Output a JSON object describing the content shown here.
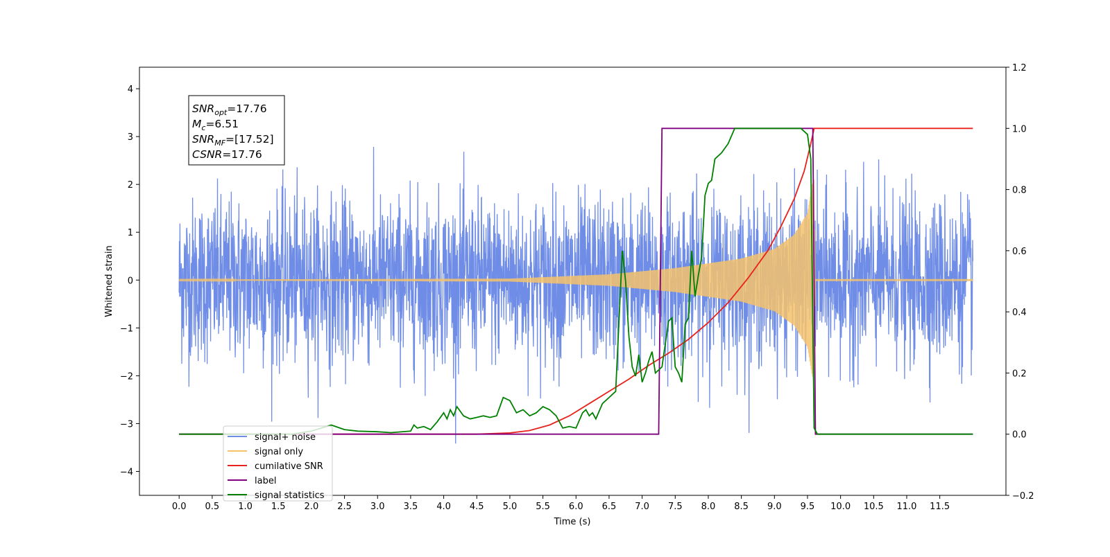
{
  "chart_data": {
    "type": "line",
    "xlabel": "Time (s)",
    "ylabel": "Whitened strain",
    "xlim": [
      -0.6,
      12.5
    ],
    "ylim": [
      -4.5,
      4.45
    ],
    "y2lim": [
      -0.2,
      1.2
    ],
    "x_ticks": [
      "0.0",
      "0.5",
      "1.0",
      "1.5",
      "2.0",
      "2.5",
      "3.0",
      "3.5",
      "4.0",
      "4.5",
      "5.0",
      "5.5",
      "6.0",
      "6.5",
      "7.0",
      "7.5",
      "8.0",
      "8.5",
      "9.0",
      "9.5",
      "10.0",
      "10.5",
      "11.0",
      "11.5"
    ],
    "x_tick_values": [
      0,
      0.5,
      1,
      1.5,
      2,
      2.5,
      3,
      3.5,
      4,
      4.5,
      5,
      5.5,
      6,
      6.5,
      7,
      7.5,
      8,
      8.5,
      9,
      9.5,
      10,
      10.5,
      11,
      11.5
    ],
    "y_ticks": [
      "4",
      "3",
      "2",
      "1",
      "0",
      "−1",
      "−2",
      "−3",
      "−4"
    ],
    "y_tick_values": [
      4,
      3,
      2,
      1,
      0,
      -1,
      -2,
      -3,
      -4
    ],
    "y2_ticks": [
      "1.2",
      "1.0",
      "0.8",
      "0.6",
      "0.4",
      "0.2",
      "0.0",
      "−0.2"
    ],
    "y2_tick_values": [
      1.2,
      1.0,
      0.8,
      0.6,
      0.4,
      0.2,
      0.0,
      -0.2
    ],
    "grid": false,
    "legend_position": "lower-left",
    "annotation": {
      "lines": [
        {
          "name": "SNR",
          "sub": "opt",
          "value": "=17.76"
        },
        {
          "name": "M",
          "sub": "c",
          "value": "=6.51"
        },
        {
          "name": "SNR",
          "sub": "MF",
          "value": "=[17.52]"
        },
        {
          "name": "CSNR",
          "sub": "",
          "value": "=17.76"
        }
      ]
    },
    "series": [
      {
        "name": "signal+ noise",
        "color": "#6f8de6",
        "axis": "left",
        "kind": "noise",
        "t_range": [
          0,
          12.0
        ],
        "noise_sigma": 1.0,
        "envelope_reaches_near": 1.5
      },
      {
        "name": "signal only",
        "color": "#f5c26b",
        "axis": "left",
        "kind": "chirp",
        "t_range": [
          0,
          12.0
        ],
        "merger_time": 9.6,
        "amplitude_at_t": [
          [
            0,
            0.01
          ],
          [
            5.0,
            0.03
          ],
          [
            6.5,
            0.12
          ],
          [
            7.5,
            0.25
          ],
          [
            8.5,
            0.45
          ],
          [
            9.0,
            0.65
          ],
          [
            9.3,
            0.95
          ],
          [
            9.5,
            1.4
          ],
          [
            9.57,
            2.0
          ],
          [
            9.6,
            2.1
          ],
          [
            9.62,
            0.02
          ],
          [
            12.0,
            0.02
          ]
        ]
      },
      {
        "name": "cumilative SNR",
        "color": "#e8211b",
        "axis": "right",
        "x": [
          0,
          3.5,
          4.5,
          5.0,
          5.3,
          5.6,
          5.9,
          6.2,
          6.5,
          6.8,
          7.1,
          7.4,
          7.7,
          8.0,
          8.3,
          8.6,
          8.9,
          9.1,
          9.3,
          9.45,
          9.55,
          9.6,
          9.61,
          12.0
        ],
        "y": [
          0,
          0,
          0,
          0.004,
          0.012,
          0.03,
          0.06,
          0.1,
          0.14,
          0.18,
          0.225,
          0.265,
          0.31,
          0.365,
          0.43,
          0.51,
          0.6,
          0.68,
          0.77,
          0.86,
          0.95,
          1.0,
          1.0,
          1.0
        ]
      },
      {
        "name": "label",
        "color": "#800080",
        "axis": "right",
        "x": [
          0,
          7.25,
          7.3,
          9.58,
          9.62,
          12.0
        ],
        "y": [
          0,
          0,
          1,
          1,
          0,
          0
        ]
      },
      {
        "name": "signal statistics",
        "color": "#008000",
        "axis": "right",
        "x": [
          0,
          1.7,
          2.0,
          2.3,
          2.5,
          2.7,
          3.0,
          3.2,
          3.5,
          3.55,
          3.6,
          3.7,
          3.8,
          3.9,
          4.0,
          4.05,
          4.1,
          4.15,
          4.2,
          4.3,
          4.4,
          4.5,
          4.6,
          4.7,
          4.8,
          4.9,
          5.0,
          5.05,
          5.1,
          5.2,
          5.3,
          5.4,
          5.5,
          5.6,
          5.7,
          5.8,
          5.9,
          6.0,
          6.1,
          6.15,
          6.2,
          6.25,
          6.3,
          6.4,
          6.5,
          6.6,
          6.7,
          6.75,
          6.8,
          6.85,
          6.9,
          6.95,
          7.0,
          7.05,
          7.1,
          7.15,
          7.2,
          7.3,
          7.4,
          7.45,
          7.5,
          7.55,
          7.6,
          7.65,
          7.7,
          7.75,
          7.8,
          7.85,
          7.9,
          7.95,
          8.0,
          8.05,
          8.1,
          8.2,
          8.3,
          8.4,
          8.5,
          9.4,
          9.5,
          9.55,
          9.6,
          9.65,
          9.7,
          12.0
        ],
        "y": [
          0,
          0,
          0.01,
          0.03,
          0.015,
          0.01,
          0.008,
          0.005,
          0.01,
          0.03,
          0.02,
          0.025,
          0.015,
          0.04,
          0.07,
          0.05,
          0.08,
          0.06,
          0.09,
          0.06,
          0.05,
          0.055,
          0.06,
          0.055,
          0.06,
          0.12,
          0.11,
          0.09,
          0.07,
          0.08,
          0.06,
          0.07,
          0.09,
          0.08,
          0.06,
          0.02,
          0.025,
          0.02,
          0.07,
          0.08,
          0.06,
          0.07,
          0.05,
          0.1,
          0.12,
          0.14,
          0.6,
          0.5,
          0.32,
          0.22,
          0.19,
          0.26,
          0.17,
          0.2,
          0.24,
          0.27,
          0.2,
          0.22,
          0.37,
          0.38,
          0.22,
          0.2,
          0.17,
          0.36,
          0.38,
          0.6,
          0.45,
          0.52,
          0.58,
          0.78,
          0.82,
          0.83,
          0.9,
          0.92,
          0.95,
          1.0,
          1.0,
          1.0,
          0.98,
          0.9,
          0.02,
          0,
          0,
          0
        ]
      }
    ]
  }
}
